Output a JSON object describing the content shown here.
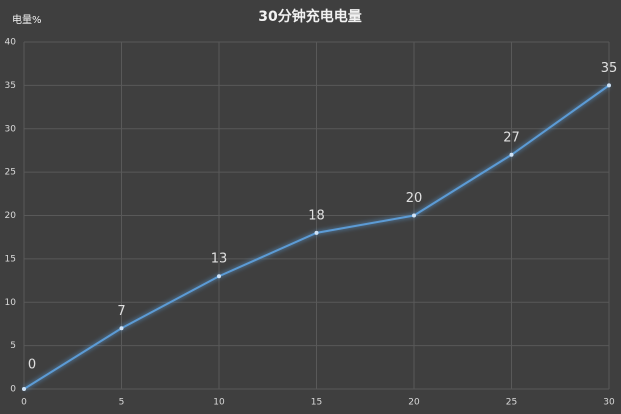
{
  "chart_data": {
    "type": "line",
    "title": "30分钟充电电量",
    "y_label": "电量%",
    "x": [
      0,
      5,
      10,
      15,
      20,
      25,
      30
    ],
    "series": [
      {
        "name": "电量",
        "color": "#5b9bd5",
        "values": [
          0,
          7,
          13,
          18,
          20,
          27,
          35
        ]
      }
    ],
    "xlim": [
      0,
      30
    ],
    "xticks": [
      0,
      5,
      10,
      15,
      20,
      25,
      30
    ],
    "ylim": [
      0,
      40
    ],
    "yticks": [
      0,
      5,
      10,
      15,
      20,
      25,
      30,
      35,
      40
    ],
    "grid": true,
    "data_labels": true
  }
}
